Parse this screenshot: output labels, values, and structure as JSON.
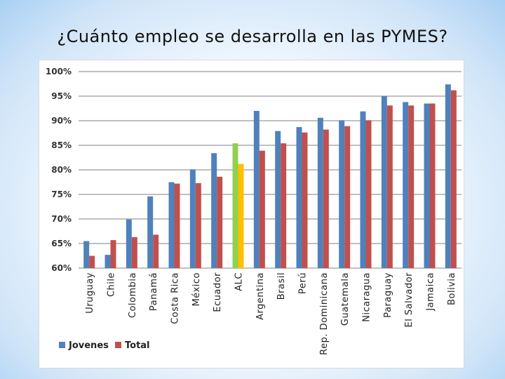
{
  "slide": {
    "title": "¿Cuánto empleo se desarrolla en las PYMES?"
  },
  "chart_data": {
    "type": "bar",
    "title": "",
    "xlabel": "",
    "ylabel": "",
    "ylim": [
      60,
      100
    ],
    "yticks": [
      60,
      65,
      70,
      75,
      80,
      85,
      90,
      95,
      100
    ],
    "ytick_labels": [
      "60%",
      "65%",
      "70%",
      "75%",
      "80%",
      "85%",
      "90%",
      "95%",
      "100%"
    ],
    "grid": true,
    "legend_position": "bottom-left",
    "categories": [
      "Uruguay",
      "Chile",
      "Colombia",
      "Panamá",
      "Costa Rica",
      "México",
      "Ecuador",
      "ALC",
      "Argentina",
      "Brasil",
      "Perú",
      "Rep. Dominicana",
      "Guatemala",
      "Nicaragua",
      "Paraguay",
      "El Salvador",
      "Jamaica",
      "Bolivia"
    ],
    "series": [
      {
        "name": "Jovenes",
        "color": "#4f81bd",
        "values": [
          65.5,
          62.7,
          69.9,
          74.6,
          77.5,
          80.1,
          83.4,
          85.4,
          92.0,
          87.9,
          88.7,
          90.6,
          90.1,
          91.9,
          95.0,
          93.8,
          93.5,
          97.4
        ]
      },
      {
        "name": "Total",
        "color": "#c0504d",
        "values": [
          62.5,
          65.7,
          66.3,
          66.8,
          77.2,
          77.3,
          78.6,
          81.2,
          83.9,
          85.4,
          87.6,
          88.2,
          88.9,
          90.1,
          93.1,
          93.1,
          93.5,
          96.2
        ]
      }
    ],
    "highlight": {
      "category": "ALC",
      "colors": [
        "#92d050",
        "#ffc000"
      ]
    }
  }
}
